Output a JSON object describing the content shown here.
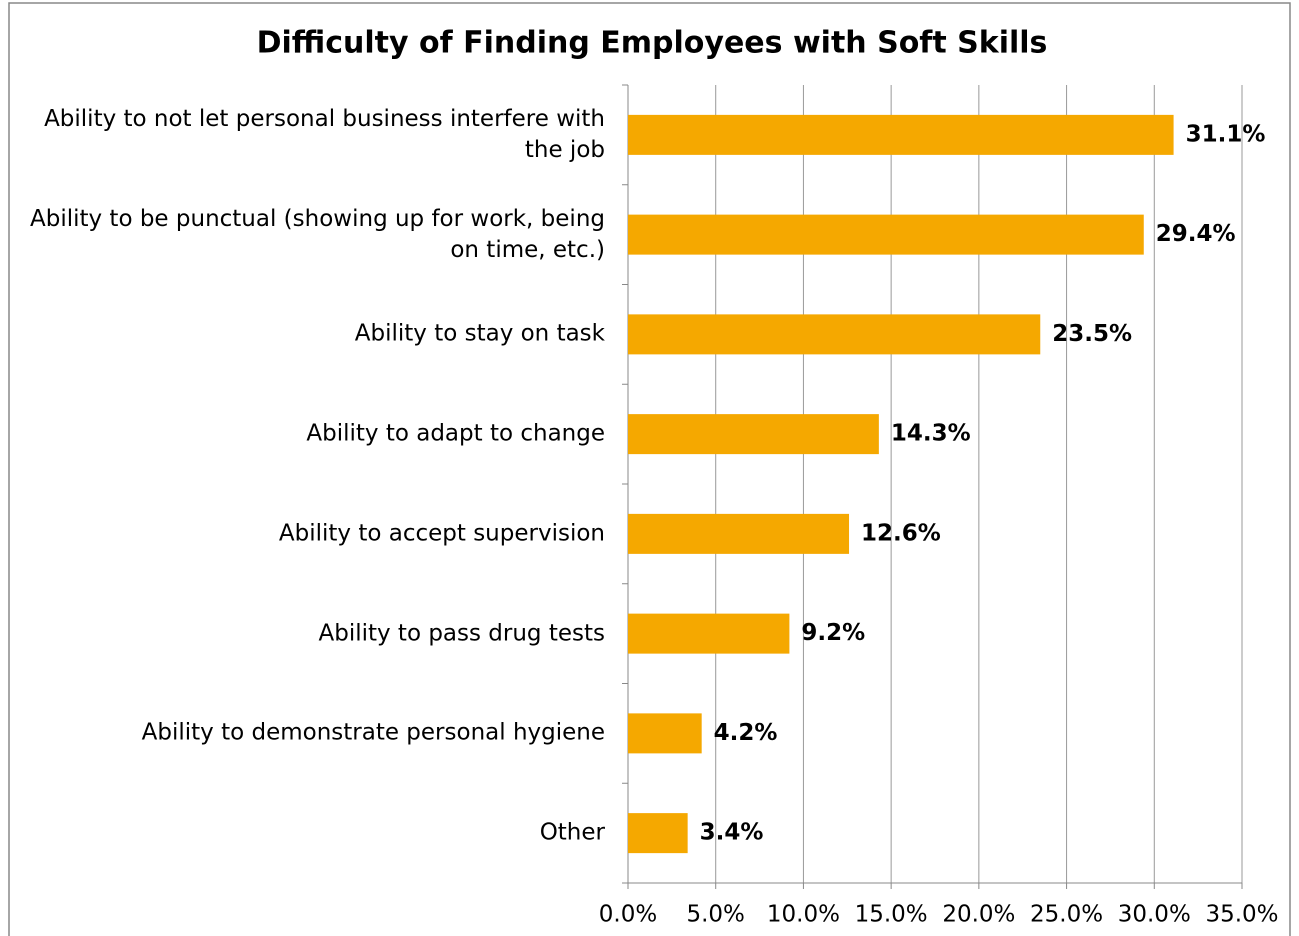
{
  "chart_data": {
    "type": "bar",
    "orientation": "horizontal",
    "title": "Difficulty of Finding Employees with Soft Skills",
    "categories": [
      "Ability to not let personal business interfere with the job",
      "Ability to be punctual (showing up for work, being on time, etc.)",
      "Ability to stay on task",
      "Ability to adapt to change",
      "Ability to accept supervision",
      "Ability to pass drug tests",
      "Ability to demonstrate personal hygiene",
      "Other"
    ],
    "values": [
      31.1,
      29.4,
      23.5,
      14.3,
      12.6,
      9.2,
      4.2,
      3.4
    ],
    "value_labels": [
      "31.1%",
      "29.4%",
      "23.5%",
      "14.3%",
      "12.6%",
      "9.2%",
      "4.2%",
      "3.4%"
    ],
    "color": "#f5a800",
    "xlim": [
      0,
      35
    ],
    "xticks": [
      {
        "value": 0,
        "label": "0.0%"
      },
      {
        "value": 5,
        "label": "5.0%"
      },
      {
        "value": 10,
        "label": "10.0%"
      },
      {
        "value": 15,
        "label": "15.0%"
      },
      {
        "value": 20,
        "label": "20.0%"
      },
      {
        "value": 25,
        "label": "25.0%"
      },
      {
        "value": 30,
        "label": "30.0%"
      },
      {
        "value": 35,
        "label": "35.0%"
      }
    ],
    "grid": true
  }
}
